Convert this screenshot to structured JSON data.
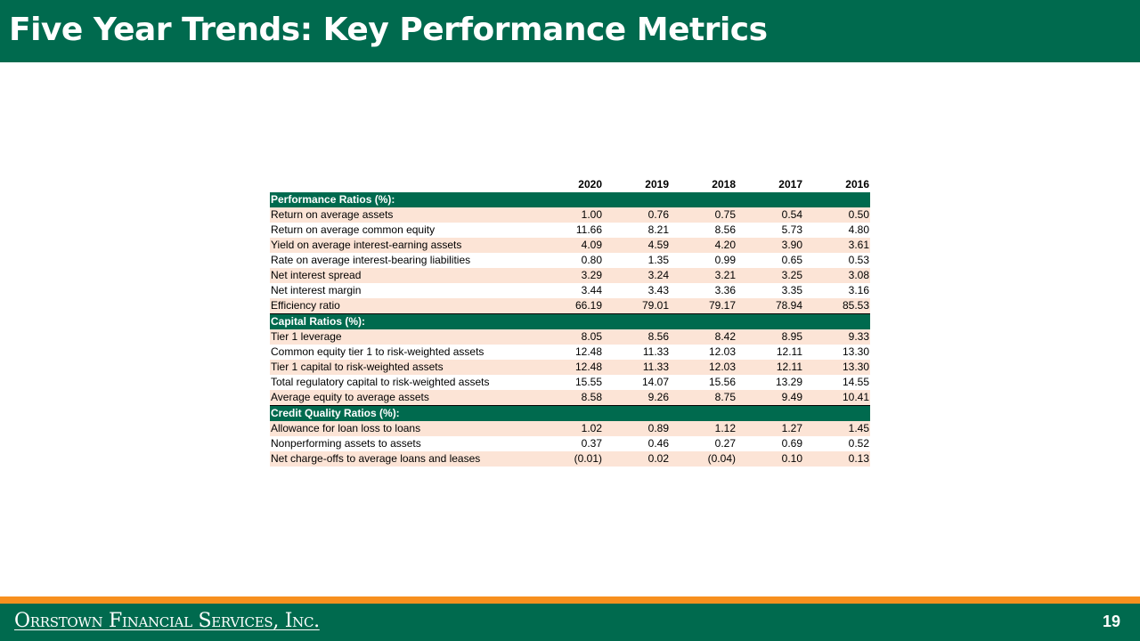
{
  "title": "Five Year Trends: Key Performance Metrics",
  "table": {
    "years": [
      "2020",
      "2019",
      "2018",
      "2017",
      "2016"
    ],
    "sections": [
      {
        "heading": "Performance Ratios (%):",
        "rows": [
          {
            "label": "Return on average  assets",
            "values": [
              "1.00",
              "0.76",
              "0.75",
              "0.54",
              "0.50"
            ]
          },
          {
            "label": "Return on average  common equity",
            "values": [
              "11.66",
              "8.21",
              "8.56",
              "5.73",
              "4.80"
            ]
          },
          {
            "label": "Yield on average  interest-earning  assets",
            "values": [
              "4.09",
              "4.59",
              "4.20",
              "3.90",
              "3.61"
            ]
          },
          {
            "label": "Rate on average  interest-bearing  liabilities",
            "values": [
              "0.80",
              "1.35",
              "0.99",
              "0.65",
              "0.53"
            ]
          },
          {
            "label": "Net interest spread",
            "values": [
              "3.29",
              "3.24",
              "3.21",
              "3.25",
              "3.08"
            ]
          },
          {
            "label": "Net interest margin",
            "values": [
              "3.44",
              "3.43",
              "3.36",
              "3.35",
              "3.16"
            ]
          },
          {
            "label": "Efficiency ratio",
            "values": [
              "66.19",
              "79.01",
              "79.17",
              "78.94",
              "85.53"
            ]
          }
        ]
      },
      {
        "heading": "Capital Ratios (%):",
        "rows": [
          {
            "label": "Tier  1 leverage",
            "values": [
              "8.05",
              "8.56",
              "8.42",
              "8.95",
              "9.33"
            ]
          },
          {
            "label": "Common  equity tier 1 to risk-weighted  assets",
            "values": [
              "12.48",
              "11.33",
              "12.03",
              "12.11",
              "13.30"
            ]
          },
          {
            "label": "Tier  1 capital to risk-weighted  assets",
            "values": [
              "12.48",
              "11.33",
              "12.03",
              "12.11",
              "13.30"
            ]
          },
          {
            "label": "Total regulatory capital to risk-weighted  assets",
            "values": [
              "15.55",
              "14.07",
              "15.56",
              "13.29",
              "14.55"
            ]
          },
          {
            "label": "Average  equity to average  assets",
            "values": [
              "8.58",
              "9.26",
              "8.75",
              "9.49",
              "10.41"
            ]
          }
        ]
      },
      {
        "heading": "Credit Quality Ratios (%):",
        "rows": [
          {
            "label": "Allowance for loan loss to loans",
            "values": [
              "1.02",
              "0.89",
              "1.12",
              "1.27",
              "1.45"
            ]
          },
          {
            "label": "Nonperforming  assets to assets",
            "values": [
              "0.37",
              "0.46",
              "0.27",
              "0.69",
              "0.52"
            ]
          },
          {
            "label": "Net charge-offs  to average  loans and leases",
            "values": [
              "(0.01)",
              "0.02",
              "(0.04)",
              "0.10",
              "0.13"
            ]
          }
        ]
      }
    ]
  },
  "footer": {
    "company": "Orrstown Financial Services, Inc.",
    "page_number": "19"
  },
  "colors": {
    "brand_green": "#006a4e",
    "accent_orange": "#f7901e",
    "row_shade": "#fce4d6"
  }
}
